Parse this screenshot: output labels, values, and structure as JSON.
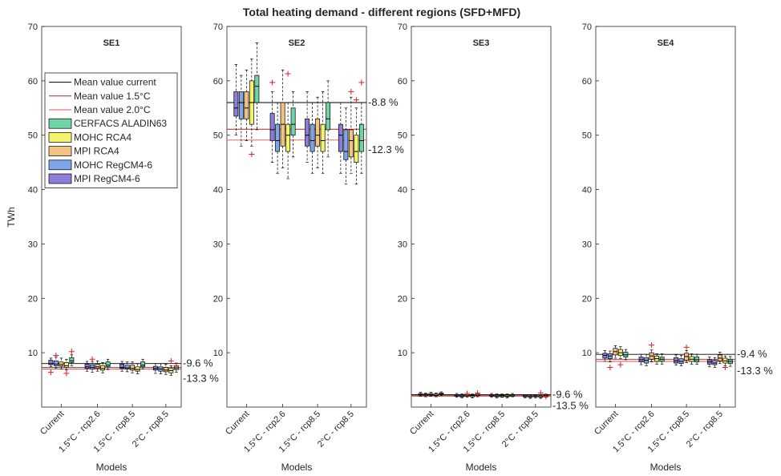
{
  "chart_data": {
    "type": "box",
    "title": "Total heating demand - different regions (SFD+MFD)",
    "ylabel": "TWh",
    "xlabel": "Models",
    "ylim": [
      0,
      70
    ],
    "yticks": [
      10,
      20,
      30,
      40,
      50,
      60,
      70
    ],
    "categories": [
      "Current",
      "1.5°C - rcp2.6",
      "1.5°C - rcp8.5",
      "2°C - rcp8.5"
    ],
    "legend": {
      "placement": "upper-left of SE1 panel",
      "line_entries": [
        {
          "label": "Mean value current",
          "color": "#000000"
        },
        {
          "label": "Mean value 1.5°C",
          "color": "#a52a2a"
        },
        {
          "label": "Mean value 2.0°C",
          "color": "#e05050"
        }
      ],
      "box_entries": [
        {
          "label": "CERFACS ALADIN63",
          "color": "#6fd4a6"
        },
        {
          "label": "MOHC RCA4",
          "color": "#f4f46a"
        },
        {
          "label": "MPI RCA4",
          "color": "#f4c384"
        },
        {
          "label": "MOHC RegCM4-6",
          "color": "#7fa6ea"
        },
        {
          "label": "MPI RegCM4-6",
          "color": "#8c7ed6"
        }
      ]
    },
    "series_order": [
      "MPI RegCM4-6",
      "MOHC RegCM4-6",
      "MPI RCA4",
      "MOHC RCA4",
      "CERFACS ALADIN63"
    ],
    "panels": [
      {
        "name": "SE1",
        "mean_current": 8.0,
        "mean_15": 7.3,
        "mean_20": 7.0,
        "annotations": [
          "-9.6 %",
          "-13.3 %"
        ],
        "boxes": [
          [
            [
              7.4,
              7.8,
              8.0,
              8.6,
              9.0
            ],
            [
              7.2,
              7.6,
              7.9,
              8.5,
              9.2
            ],
            [
              7.0,
              7.5,
              7.8,
              8.3,
              9.0
            ],
            [
              6.8,
              7.3,
              7.6,
              8.2,
              8.8
            ],
            [
              7.6,
              8.2,
              8.5,
              9.1,
              9.6
            ]
          ],
          [
            [
              6.6,
              7.1,
              7.4,
              7.9,
              8.4
            ],
            [
              6.4,
              7.0,
              7.3,
              7.8,
              8.4
            ],
            [
              6.6,
              7.1,
              7.4,
              7.9,
              8.5
            ],
            [
              6.3,
              6.8,
              7.1,
              7.6,
              8.2
            ],
            [
              6.9,
              7.4,
              7.7,
              8.3,
              8.8
            ]
          ],
          [
            [
              6.6,
              7.1,
              7.3,
              7.9,
              8.4
            ],
            [
              6.5,
              7.0,
              7.2,
              7.7,
              8.3
            ],
            [
              6.3,
              6.8,
              7.1,
              7.7,
              8.3
            ],
            [
              6.1,
              6.6,
              6.9,
              7.4,
              8.0
            ],
            [
              7.0,
              7.4,
              7.7,
              8.3,
              8.8
            ]
          ],
          [
            [
              6.2,
              6.8,
              7.1,
              7.5,
              8.0
            ],
            [
              6.1,
              6.6,
              7.0,
              7.4,
              8.0
            ],
            [
              6.0,
              6.5,
              6.8,
              7.3,
              7.9
            ],
            [
              5.8,
              6.3,
              6.7,
              7.1,
              7.6
            ],
            [
              6.4,
              6.9,
              7.2,
              7.6,
              8.1
            ]
          ]
        ],
        "outliers": [
          [
            [
              6.4
            ],
            [
              9.5
            ],
            [],
            [
              6.2
            ],
            [
              10.2
            ]
          ],
          [
            [],
            [
              8.8
            ],
            [],
            [],
            []
          ],
          [
            [],
            [],
            [],
            [],
            []
          ],
          [
            [],
            [],
            [],
            [
              8.5
            ],
            [
              7.6
            ]
          ]
        ]
      },
      {
        "name": "SE2",
        "mean_current": 56.0,
        "mean_15": 51.1,
        "mean_20": 49.1,
        "annotations": [
          "-8.8 %",
          "-12.3 %"
        ],
        "boxes": [
          [
            [
              50,
              53.5,
              55,
              58,
              63
            ],
            [
              48,
              53,
              56,
              58,
              61
            ],
            [
              49,
              53,
              55,
              58,
              62
            ],
            [
              48,
              52,
              56,
              60,
              64
            ],
            [
              51,
              56,
              59,
              61,
              67
            ]
          ],
          [
            [
              45,
              49,
              51,
              54,
              58
            ],
            [
              43,
              47,
              49,
              52,
              56
            ],
            [
              44,
              48,
              52,
              56,
              62
            ],
            [
              42,
              47,
              50,
              52,
              56
            ],
            [
              46,
              50,
              52,
              55,
              58
            ]
          ],
          [
            [
              45,
              48,
              50,
              53,
              58
            ],
            [
              43,
              47,
              49,
              52,
              56
            ],
            [
              44,
              48,
              50,
              53,
              57
            ],
            [
              43,
              47,
              49,
              52,
              58
            ],
            [
              46,
              51,
              53,
              56,
              60
            ]
          ],
          [
            [
              43,
              47,
              50,
              52,
              56
            ],
            [
              41,
              45.5,
              47,
              51,
              55
            ],
            [
              43,
              46,
              49,
              51,
              57
            ],
            [
              41,
              45,
              47,
              50,
              55
            ],
            [
              43,
              47,
              49,
              52,
              56
            ]
          ]
        ],
        "outliers": [
          [
            [],
            [],
            [],
            [
              46.5
            ],
            []
          ],
          [
            [
              59.7
            ],
            [],
            [],
            [
              61.3
            ],
            []
          ],
          [
            [],
            [],
            [],
            [],
            []
          ],
          [
            [],
            [],
            [
              58.0
            ],
            [
              56.5
            ],
            [
              59.7
            ]
          ]
        ]
      },
      {
        "name": "SE3",
        "mean_current": 2.3,
        "mean_15": 2.1,
        "mean_20": 2.0,
        "annotations": [
          "-9.6 %",
          "-13.5 %"
        ],
        "boxes": [
          [
            [
              2.0,
              2.2,
              2.3,
              2.5,
              2.7
            ],
            [
              1.9,
              2.1,
              2.3,
              2.4,
              2.6
            ],
            [
              2.0,
              2.2,
              2.3,
              2.5,
              2.7
            ],
            [
              1.9,
              2.1,
              2.2,
              2.4,
              2.6
            ],
            [
              2.1,
              2.3,
              2.4,
              2.6,
              2.8
            ]
          ],
          [
            [
              1.8,
              2.0,
              2.1,
              2.3,
              2.5
            ],
            [
              1.7,
              1.9,
              2.0,
              2.2,
              2.4
            ],
            [
              1.8,
              2.0,
              2.1,
              2.3,
              2.5
            ],
            [
              1.7,
              1.9,
              2.1,
              2.2,
              2.4
            ],
            [
              1.9,
              2.1,
              2.2,
              2.4,
              2.6
            ]
          ],
          [
            [
              1.8,
              2.0,
              2.1,
              2.3,
              2.5
            ],
            [
              1.7,
              1.9,
              2.0,
              2.2,
              2.4
            ],
            [
              1.8,
              1.9,
              2.1,
              2.2,
              2.4
            ],
            [
              1.7,
              1.9,
              2.0,
              2.2,
              2.4
            ],
            [
              1.9,
              2.0,
              2.2,
              2.3,
              2.5
            ]
          ],
          [
            [
              1.7,
              1.9,
              2.0,
              2.2,
              2.3
            ],
            [
              1.6,
              1.8,
              1.9,
              2.1,
              2.3
            ],
            [
              1.7,
              1.9,
              2.0,
              2.1,
              2.3
            ],
            [
              1.6,
              1.8,
              1.9,
              2.1,
              2.2
            ],
            [
              1.8,
              1.9,
              2.1,
              2.2,
              2.4
            ]
          ]
        ],
        "outliers": [
          [
            [],
            [],
            [],
            [],
            []
          ],
          [
            [],
            [],
            [
              2.5
            ],
            [],
            [
              2.6
            ]
          ],
          [
            [],
            [],
            [],
            [],
            []
          ],
          [
            [],
            [],
            [],
            [
              2.6
            ],
            [
              1.9
            ]
          ]
        ]
      },
      {
        "name": "SE4",
        "mean_current": 9.7,
        "mean_15": 8.8,
        "mean_20": 8.4,
        "annotations": [
          "-9.4 %",
          "-13.3 %"
        ],
        "boxes": [
          [
            [
              8.4,
              9.0,
              9.5,
              9.9,
              10.4
            ],
            [
              8.3,
              8.9,
              9.4,
              9.8,
              10.3
            ],
            [
              9.0,
              9.6,
              10.2,
              10.8,
              11.3
            ],
            [
              8.9,
              9.5,
              10.0,
              10.6,
              11.1
            ],
            [
              8.7,
              9.2,
              9.6,
              10.1,
              10.6
            ]
          ],
          [
            [
              7.8,
              8.3,
              8.7,
              9.2,
              9.7
            ],
            [
              7.6,
              8.1,
              8.6,
              9.1,
              9.7
            ],
            [
              8.3,
              8.8,
              9.4,
              10.0,
              10.5
            ],
            [
              7.9,
              8.4,
              8.9,
              9.4,
              9.8
            ],
            [
              7.9,
              8.4,
              8.8,
              9.2,
              9.8
            ]
          ],
          [
            [
              7.7,
              8.1,
              8.5,
              9.1,
              9.6
            ],
            [
              7.6,
              8.0,
              8.4,
              8.9,
              9.5
            ],
            [
              8.2,
              8.6,
              9.3,
              9.9,
              10.4
            ],
            [
              7.9,
              8.4,
              8.8,
              9.3,
              9.8
            ],
            [
              7.9,
              8.3,
              8.7,
              9.2,
              9.7
            ]
          ],
          [
            [
              7.4,
              7.9,
              8.3,
              8.7,
              9.2
            ],
            [
              7.3,
              7.8,
              8.1,
              8.6,
              9.1
            ],
            [
              8.0,
              8.5,
              9.0,
              9.6,
              10.1
            ],
            [
              7.6,
              8.1,
              8.5,
              9.0,
              9.4
            ],
            [
              7.5,
              8.0,
              8.4,
              8.8,
              9.3
            ]
          ]
        ],
        "outliers": [
          [
            [],
            [
              7.3
            ],
            [],
            [
              7.8
            ],
            []
          ],
          [
            [],
            [],
            [
              11.4
            ],
            [],
            []
          ],
          [
            [],
            [],
            [
              11.0
            ],
            [],
            []
          ],
          [
            [],
            [],
            [],
            [
              7.3
            ],
            []
          ]
        ]
      }
    ]
  }
}
